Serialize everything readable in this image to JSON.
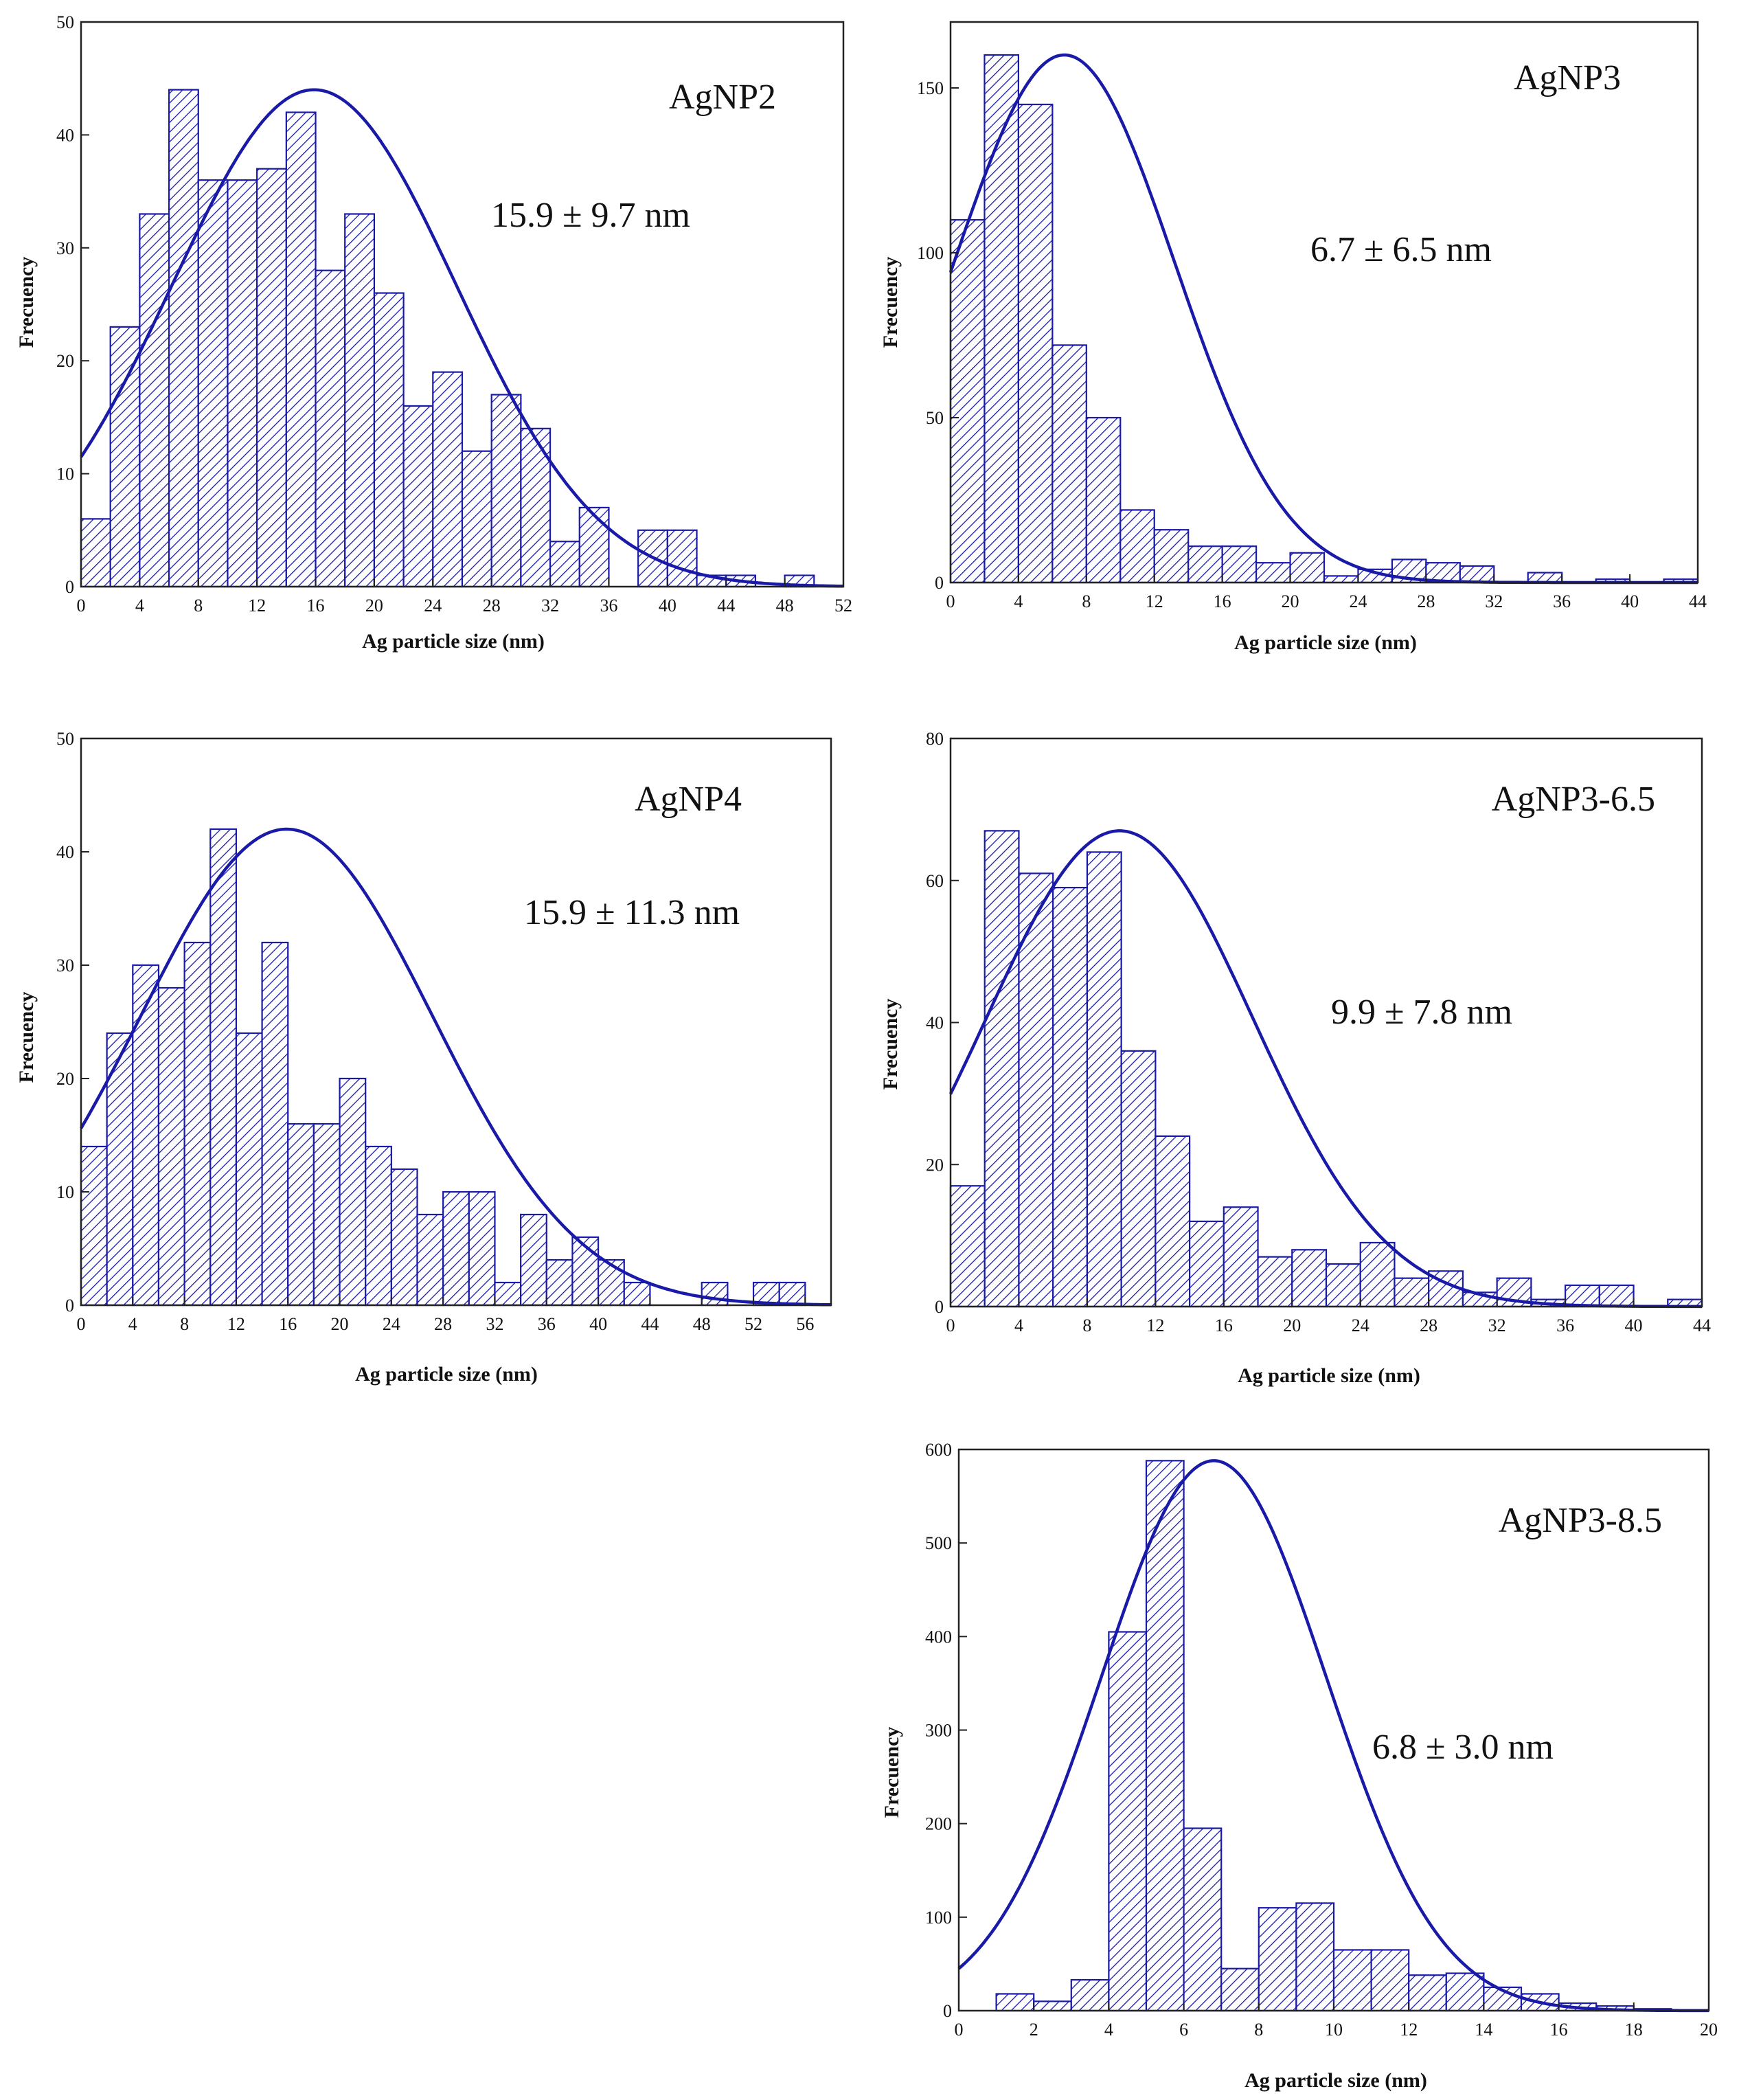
{
  "figure": {
    "description": "Ag particle size distributions",
    "colors": {
      "bar_hatch": "#1a1aa8",
      "bar_fill": "#ffffff",
      "fit_curve": "#1a1aa8",
      "axis": "#222222"
    }
  },
  "chart_data": [
    {
      "id": "agnp2",
      "type": "bar",
      "sample_label": "AgNP2",
      "stat_text": "15.9 ± 9.7 nm",
      "xlabel": "Ag particle size (nm)",
      "ylabel": "Frecuency",
      "xlim": [
        0,
        52
      ],
      "ylim": [
        0,
        50
      ],
      "xticks": [
        0,
        4,
        8,
        12,
        16,
        20,
        24,
        28,
        32,
        36,
        40,
        44,
        48,
        52
      ],
      "yticks": [
        0,
        10,
        20,
        30,
        40,
        50
      ],
      "bin_width": 2,
      "bin_starts": [
        0,
        2,
        4,
        6,
        8,
        10,
        12,
        14,
        16,
        18,
        20,
        22,
        24,
        26,
        28,
        30,
        32,
        34,
        36,
        38,
        40,
        42,
        44,
        46,
        48
      ],
      "values": [
        6,
        23,
        33,
        44,
        36,
        36,
        37,
        42,
        28,
        33,
        26,
        16,
        19,
        12,
        17,
        14,
        4,
        7,
        0,
        5,
        5,
        1,
        1,
        0,
        1
      ],
      "fit": {
        "mean": 15.9,
        "sd": 9.7,
        "peak": 44
      }
    },
    {
      "id": "agnp3",
      "type": "bar",
      "sample_label": "AgNP3",
      "stat_text": "6.7 ± 6.5 nm",
      "xlabel": "Ag particle size (nm)",
      "ylabel": "Frecuency",
      "xlim": [
        0,
        44
      ],
      "ylim": [
        0,
        170
      ],
      "xticks": [
        0,
        4,
        8,
        12,
        16,
        20,
        24,
        28,
        32,
        36,
        40,
        44
      ],
      "yticks": [
        0,
        50,
        100,
        150
      ],
      "bin_width": 2,
      "bin_starts": [
        0,
        2,
        4,
        6,
        8,
        10,
        12,
        14,
        16,
        18,
        20,
        22,
        24,
        26,
        28,
        30,
        32,
        34,
        36,
        38,
        40,
        42
      ],
      "values": [
        110,
        160,
        145,
        72,
        50,
        22,
        16,
        11,
        11,
        6,
        9,
        2,
        4,
        7,
        6,
        5,
        0,
        3,
        0,
        1,
        0,
        1
      ],
      "fit": {
        "mean": 6.7,
        "sd": 6.5,
        "peak": 160
      }
    },
    {
      "id": "agnp4",
      "type": "bar",
      "sample_label": "AgNP4",
      "stat_text": "15.9 ± 11.3 nm",
      "xlabel": "Ag particle size (nm)",
      "ylabel": "Frecuency",
      "xlim": [
        0,
        58
      ],
      "ylim": [
        0,
        50
      ],
      "xticks": [
        0,
        4,
        8,
        12,
        16,
        20,
        24,
        28,
        32,
        36,
        40,
        44,
        48,
        52,
        56
      ],
      "yticks": [
        0,
        10,
        20,
        30,
        40,
        50
      ],
      "bin_width": 2,
      "bin_starts": [
        0,
        2,
        4,
        6,
        8,
        10,
        12,
        14,
        16,
        18,
        20,
        22,
        24,
        26,
        28,
        30,
        32,
        34,
        36,
        38,
        40,
        42,
        44,
        46,
        48,
        50,
        52,
        54
      ],
      "values": [
        14,
        24,
        30,
        28,
        32,
        42,
        24,
        32,
        16,
        16,
        20,
        14,
        12,
        8,
        10,
        10,
        2,
        8,
        4,
        6,
        4,
        2,
        0,
        0,
        2,
        0,
        2,
        2
      ],
      "fit": {
        "mean": 15.9,
        "sd": 11.3,
        "peak": 42
      }
    },
    {
      "id": "agnp3-6-5",
      "type": "bar",
      "sample_label": "AgNP3-6.5",
      "stat_text": "9.9 ± 7.8 nm",
      "xlabel": "Ag particle size (nm)",
      "ylabel": "Frecuency",
      "xlim": [
        0,
        44
      ],
      "ylim": [
        0,
        80
      ],
      "xticks": [
        0,
        4,
        8,
        12,
        16,
        20,
        24,
        28,
        32,
        36,
        40,
        44
      ],
      "yticks": [
        0,
        20,
        40,
        60,
        80
      ],
      "bin_width": 2,
      "bin_starts": [
        0,
        2,
        4,
        6,
        8,
        10,
        12,
        14,
        16,
        18,
        20,
        22,
        24,
        26,
        28,
        30,
        32,
        34,
        36,
        38,
        40,
        42
      ],
      "values": [
        17,
        67,
        61,
        59,
        64,
        36,
        24,
        12,
        14,
        7,
        8,
        6,
        9,
        4,
        5,
        2,
        4,
        1,
        3,
        3,
        0,
        1
      ],
      "fit": {
        "mean": 9.9,
        "sd": 7.8,
        "peak": 67
      }
    },
    {
      "id": "agnp3-8-5",
      "type": "bar",
      "sample_label": "AgNP3-8.5",
      "stat_text": "6.8 ± 3.0 nm",
      "xlabel": "Ag particle size (nm)",
      "ylabel": "Frecuency",
      "xlim": [
        0,
        20
      ],
      "ylim": [
        0,
        600
      ],
      "xticks": [
        0,
        2,
        4,
        6,
        8,
        10,
        12,
        14,
        16,
        18,
        20
      ],
      "yticks": [
        0,
        100,
        200,
        300,
        400,
        500,
        600
      ],
      "bin_width": 1,
      "bin_starts": [
        1,
        2,
        3,
        4,
        5,
        6,
        7,
        8,
        9,
        10,
        11,
        12,
        13,
        14,
        15,
        16,
        17,
        18
      ],
      "values": [
        18,
        10,
        33,
        405,
        588,
        195,
        45,
        110,
        115,
        65,
        65,
        38,
        40,
        25,
        18,
        8,
        5,
        2
      ],
      "fit": {
        "mean": 6.8,
        "sd": 3.0,
        "peak": 588
      }
    }
  ]
}
